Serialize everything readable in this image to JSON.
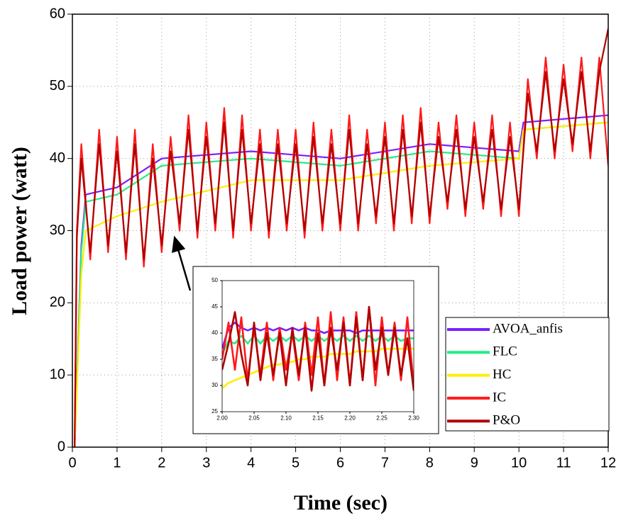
{
  "chart_data": [
    {
      "type": "line",
      "xlabel": "Time (sec)",
      "ylabel": "Load power (watt)",
      "xlim": [
        0,
        12
      ],
      "ylim": [
        0,
        60
      ],
      "xticks": [
        0,
        1,
        2,
        3,
        4,
        5,
        6,
        7,
        8,
        9,
        10,
        11,
        12
      ],
      "yticks": [
        0,
        10,
        20,
        30,
        40,
        50,
        60
      ],
      "grid": true,
      "legend": "lower right",
      "series": [
        {
          "name": "AVOA_anfis",
          "color": "#7b1fff",
          "x": [
            0.05,
            0.2,
            0.3,
            1,
            2,
            4,
            6,
            8,
            10,
            10.1,
            12
          ],
          "values": [
            0,
            28,
            35,
            36,
            40,
            41,
            40,
            42,
            41,
            45,
            46
          ]
        },
        {
          "name": "FLC",
          "color": "#22ee88",
          "x": [
            0.05,
            0.2,
            0.3,
            1,
            2,
            4,
            6,
            8,
            10,
            10.1,
            12
          ],
          "values": [
            0,
            27,
            34,
            35,
            39,
            40,
            39,
            41,
            40,
            44,
            45
          ]
        },
        {
          "name": "HC",
          "color": "#ffee00",
          "x": [
            0.05,
            0.2,
            0.3,
            1,
            2,
            4,
            6,
            8,
            10,
            10.1,
            12
          ],
          "values": [
            0,
            24,
            30,
            32,
            34,
            37,
            37,
            39,
            40,
            44,
            45
          ]
        },
        {
          "name": "IC",
          "color": "#ff1a1a",
          "x": [
            0.05,
            0.1,
            0.2,
            0.4,
            0.6,
            0.8,
            1.0,
            1.2,
            1.4,
            1.6,
            1.8,
            2.0,
            2.2,
            2.4,
            2.6,
            2.8,
            3.0,
            3.2,
            3.4,
            3.6,
            3.8,
            4.0,
            4.2,
            4.4,
            4.6,
            4.8,
            5.0,
            5.2,
            5.4,
            5.6,
            5.8,
            6.0,
            6.2,
            6.4,
            6.6,
            6.8,
            7.0,
            7.2,
            7.4,
            7.6,
            7.8,
            8.0,
            8.2,
            8.4,
            8.6,
            8.8,
            9.0,
            9.2,
            9.4,
            9.6,
            9.8,
            10.0,
            10.2,
            10.4,
            10.6,
            10.8,
            11.0,
            11.2,
            11.4,
            11.6,
            11.8,
            12.0
          ],
          "values": [
            0,
            30,
            42,
            26,
            44,
            27,
            43,
            26,
            44,
            25,
            42,
            27,
            43,
            30,
            46,
            29,
            45,
            30,
            47,
            29,
            46,
            30,
            44,
            29,
            44,
            30,
            44,
            29,
            45,
            30,
            44,
            30,
            46,
            30,
            44,
            31,
            45,
            30,
            46,
            31,
            47,
            31,
            45,
            33,
            46,
            32,
            45,
            33,
            46,
            32,
            45,
            32,
            51,
            40,
            54,
            40,
            53,
            41,
            54,
            40,
            54,
            39
          ]
        },
        {
          "name": "P&O",
          "color": "#b00000",
          "x": [
            0.05,
            0.1,
            0.2,
            0.4,
            0.6,
            0.8,
            1.0,
            1.2,
            1.4,
            1.6,
            1.8,
            2.0,
            2.2,
            2.4,
            2.6,
            2.8,
            3.0,
            3.2,
            3.4,
            3.6,
            3.8,
            4.0,
            4.2,
            4.4,
            4.6,
            4.8,
            5.0,
            5.2,
            5.4,
            5.6,
            5.8,
            6.0,
            6.2,
            6.4,
            6.6,
            6.8,
            7.0,
            7.2,
            7.4,
            7.6,
            7.8,
            8.0,
            8.2,
            8.4,
            8.6,
            8.8,
            9.0,
            9.2,
            9.4,
            9.6,
            9.8,
            10.0,
            10.2,
            10.4,
            10.6,
            10.8,
            11.0,
            11.2,
            11.4,
            11.6,
            11.8,
            12.0
          ],
          "values": [
            0,
            29,
            40,
            27,
            42,
            28,
            41,
            27,
            42,
            26,
            40,
            28,
            41,
            31,
            44,
            30,
            43,
            31,
            45,
            30,
            44,
            31,
            42,
            30,
            42,
            31,
            42,
            30,
            43,
            31,
            42,
            31,
            44,
            31,
            42,
            32,
            43,
            31,
            44,
            32,
            45,
            32,
            43,
            34,
            44,
            33,
            43,
            34,
            44,
            33,
            43,
            33,
            49,
            41,
            52,
            41,
            51,
            42,
            52,
            41,
            52,
            58
          ]
        }
      ]
    },
    {
      "type": "line",
      "xlim": [
        2.0,
        2.3
      ],
      "ylim": [
        25,
        50
      ],
      "xticks": [
        {
          "value": 2.0,
          "label": "2.00"
        },
        {
          "value": 2.05,
          "label": "2.05"
        },
        {
          "value": 2.1,
          "label": "2.10"
        },
        {
          "value": 2.15,
          "label": "2.15"
        },
        {
          "value": 2.2,
          "label": "2.20"
        },
        {
          "value": 2.25,
          "label": "2.25"
        },
        {
          "value": 2.3,
          "label": "2.30"
        }
      ],
      "yticks": [
        25,
        30,
        35,
        40,
        45,
        50
      ],
      "grid": false,
      "x": [
        2.0,
        2.01,
        2.02,
        2.03,
        2.04,
        2.05,
        2.06,
        2.07,
        2.08,
        2.09,
        2.1,
        2.11,
        2.12,
        2.13,
        2.14,
        2.15,
        2.16,
        2.17,
        2.18,
        2.19,
        2.2,
        2.21,
        2.22,
        2.23,
        2.24,
        2.25,
        2.26,
        2.27,
        2.28,
        2.29,
        2.3
      ],
      "series": [
        {
          "color": "#7b1fff",
          "values": [
            37,
            41,
            42,
            41,
            40.5,
            41,
            40.5,
            41,
            40.5,
            41,
            40.5,
            41,
            40.5,
            41,
            40.5,
            40.5,
            40,
            40.5,
            40.5,
            40.5,
            40.5,
            40,
            40.5,
            40.5,
            40.5,
            40.5,
            40.5,
            40.5,
            40.5,
            40.5,
            40.5
          ]
        },
        {
          "color": "#22ee88",
          "values": [
            36,
            38.5,
            38,
            39.5,
            38,
            39.5,
            38,
            39.5,
            38.5,
            39.5,
            38.5,
            39.5,
            38.5,
            39.5,
            38.5,
            39.5,
            38.5,
            39.5,
            38.5,
            39.5,
            38.5,
            39.5,
            38.5,
            39.5,
            38.5,
            39.5,
            38.5,
            39.5,
            38.5,
            39,
            39
          ]
        },
        {
          "color": "#ffee00",
          "values": [
            29.5,
            30.5,
            31,
            31.5,
            32,
            32.5,
            33,
            33.5,
            34,
            34,
            34.5,
            34.5,
            35,
            35,
            35.5,
            35.5,
            35.5,
            36,
            36,
            36,
            36,
            36.5,
            36.5,
            36.5,
            36.5,
            37,
            37,
            37,
            37,
            37,
            37
          ]
        },
        {
          "color": "#ff1a1a",
          "values": [
            35,
            42,
            33,
            43,
            31,
            41,
            32,
            42,
            31,
            41,
            33,
            40,
            31,
            42,
            32,
            43,
            30,
            44,
            31,
            43,
            30,
            44,
            31,
            45,
            30,
            43,
            32,
            42,
            31,
            43,
            30
          ]
        },
        {
          "color": "#b00000",
          "values": [
            33,
            38,
            44,
            36,
            30,
            42,
            31,
            40,
            32,
            40,
            30,
            41,
            32,
            41,
            29,
            40,
            30,
            41,
            33,
            42,
            30,
            43,
            31,
            45,
            33,
            41,
            32,
            41,
            32,
            39,
            29
          ]
        }
      ]
    }
  ]
}
